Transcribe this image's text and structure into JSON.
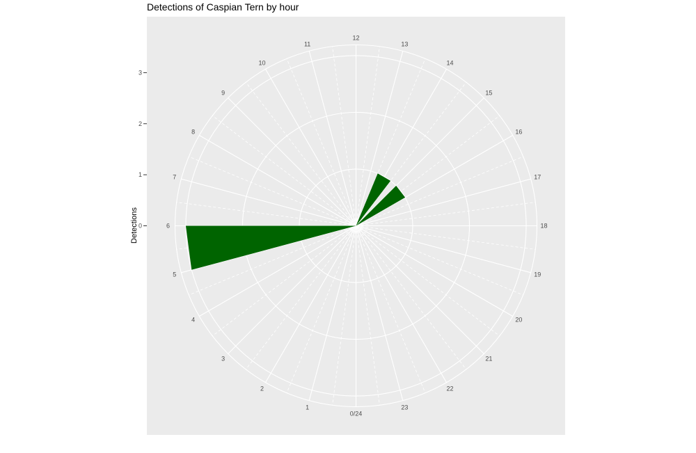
{
  "chart_data": {
    "type": "bar",
    "coordinate_system": "polar",
    "title": "Detections of Caspian Tern by hour",
    "ylabel": "Detections",
    "xlabel": "",
    "ylim": [
      0,
      3.3
    ],
    "y_ticks": [
      "0",
      "1",
      "2",
      "3"
    ],
    "y_tick_values": [
      0,
      1,
      2,
      3
    ],
    "hour_labels": [
      "0/24",
      "1",
      "2",
      "3",
      "4",
      "5",
      "6",
      "7",
      "8",
      "9",
      "10",
      "11",
      "12",
      "13",
      "14",
      "15",
      "16",
      "17",
      "18",
      "19",
      "20",
      "21",
      "22",
      "23"
    ],
    "bars": [
      {
        "start_hour": 5.0,
        "end_hour": 6.0,
        "value": 3
      },
      {
        "start_hour": 13.5,
        "end_hour": 14.5,
        "value": 1
      },
      {
        "start_hour": 15.0,
        "end_hour": 16.0,
        "value": 1
      }
    ],
    "grid": true,
    "bar_color": "#006400",
    "panel_color": "#ebebeb",
    "grid_color": "#ffffff"
  }
}
